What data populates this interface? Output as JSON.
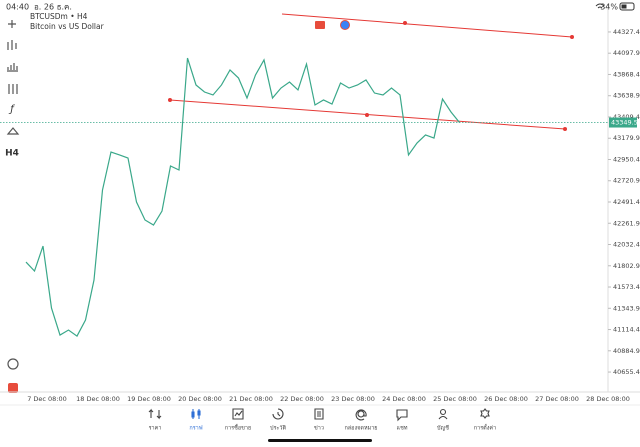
{
  "status_bar": {
    "time": "04:40",
    "date": "อ. 26 ธ.ค.",
    "battery": "34%"
  },
  "toolbar": {
    "timeframe": "H4"
  },
  "chart_data": {
    "type": "line",
    "title": "BTCUSDm • H4",
    "subtitle": "Bitcoin vs US Dollar",
    "color": "#3aa88a",
    "values": [
      41843,
      41746,
      42016,
      41346,
      41055,
      41109,
      41044,
      41217,
      41649,
      42621,
      43031,
      42999,
      42966,
      42491,
      42297,
      42243,
      42394,
      42880,
      42837,
      44046,
      43755,
      43679,
      43647,
      43755,
      43917,
      43830,
      43614,
      43863,
      44025,
      43614,
      43722,
      43787,
      43701,
      43981,
      43539,
      43593,
      43549,
      43776,
      43722,
      43755,
      43809,
      43668,
      43647,
      43722,
      43647,
      42999,
      43128,
      43215,
      43182,
      43603,
      43463,
      43350
    ],
    "x_labels": [
      "7 Dec 08:00",
      "18 Dec 08:00",
      "19 Dec 08:00",
      "20 Dec 08:00",
      "21 Dec 08:00",
      "22 Dec 08:00",
      "23 Dec 08:00",
      "24 Dec 08:00",
      "25 Dec 08:00",
      "26 Dec 08:00",
      "27 Dec 08:00",
      "28 Dec 08:00"
    ],
    "ylim": [
      40440,
      44586
    ],
    "yticks": [
      {
        "value": 44327.4,
        "label": "44327.40"
      },
      {
        "value": 44097.9,
        "label": "44097.90"
      },
      {
        "value": 43868.4,
        "label": "43868.40"
      },
      {
        "value": 43638.9,
        "label": "43638.90"
      },
      {
        "value": 43409.4,
        "label": "43409.40"
      },
      {
        "value": 43179.9,
        "label": "43179.90"
      },
      {
        "value": 42950.4,
        "label": "42950.40"
      },
      {
        "value": 42720.9,
        "label": "42720.90"
      },
      {
        "value": 42491.4,
        "label": "42491.40"
      },
      {
        "value": 42261.9,
        "label": "42261.90"
      },
      {
        "value": 42032.4,
        "label": "42032.40"
      },
      {
        "value": 41802.9,
        "label": "41802.90"
      },
      {
        "value": 41573.4,
        "label": "41573.40"
      },
      {
        "value": 41343.9,
        "label": "41343.90"
      },
      {
        "value": 41114.4,
        "label": "41114.40"
      },
      {
        "value": 40884.9,
        "label": "40884.90"
      },
      {
        "value": 40655.4,
        "label": "40655.40"
      }
    ],
    "current_price": 43349.53,
    "grid": false
  },
  "tabs": [
    "ราคา",
    "กราฟ",
    "การซื้อขาย",
    "ประวัติ",
    "ข่าว",
    "กล่องจดหมาย",
    "แชท",
    "บัญชี",
    "การตั้งค่า"
  ],
  "active_tab": 1
}
